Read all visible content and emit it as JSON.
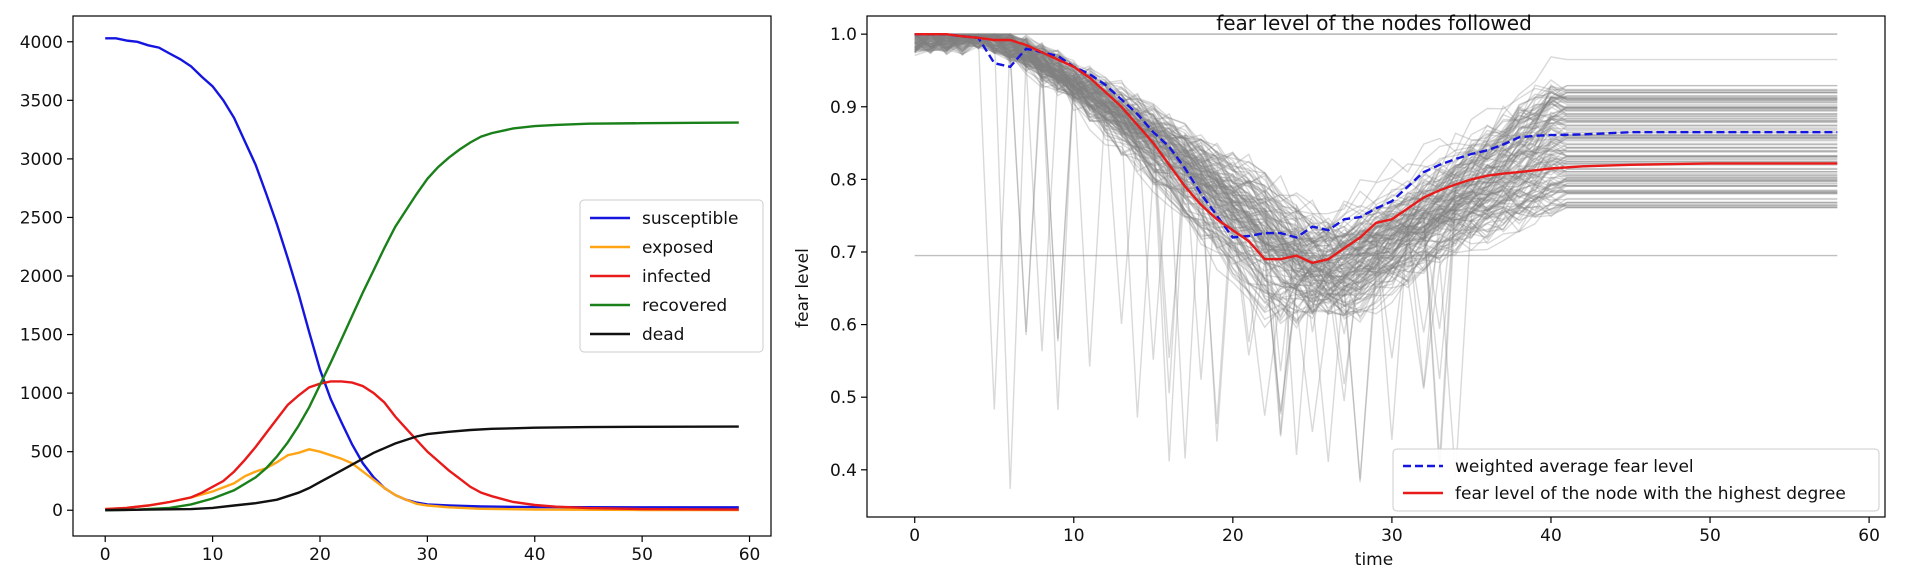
{
  "chart_data": [
    {
      "type": "line",
      "title": "",
      "xlabel": "",
      "ylabel": "",
      "xlim": [
        -3,
        62
      ],
      "ylim": [
        -220,
        4220
      ],
      "xticks": [
        0,
        10,
        20,
        30,
        40,
        50,
        60
      ],
      "yticks": [
        0,
        500,
        1000,
        1500,
        2000,
        2500,
        3000,
        3500,
        4000
      ],
      "legend_position": "center-right",
      "series": [
        {
          "name": "susceptible",
          "color": "#1515e0",
          "points": [
            [
              0,
              4030
            ],
            [
              1,
              4030
            ],
            [
              2,
              4010
            ],
            [
              3,
              4000
            ],
            [
              4,
              3970
            ],
            [
              5,
              3950
            ],
            [
              6,
              3900
            ],
            [
              7,
              3850
            ],
            [
              8,
              3790
            ],
            [
              9,
              3700
            ],
            [
              10,
              3620
            ],
            [
              11,
              3500
            ],
            [
              12,
              3350
            ],
            [
              13,
              3150
            ],
            [
              14,
              2950
            ],
            [
              15,
              2700
            ],
            [
              16,
              2440
            ],
            [
              17,
              2150
            ],
            [
              18,
              1850
            ],
            [
              19,
              1520
            ],
            [
              20,
              1200
            ],
            [
              21,
              950
            ],
            [
              22,
              750
            ],
            [
              23,
              560
            ],
            [
              24,
              400
            ],
            [
              25,
              280
            ],
            [
              26,
              190
            ],
            [
              27,
              130
            ],
            [
              28,
              90
            ],
            [
              29,
              65
            ],
            [
              30,
              50
            ],
            [
              32,
              40
            ],
            [
              35,
              32
            ],
            [
              40,
              27
            ],
            [
              50,
              25
            ],
            [
              59,
              25
            ]
          ]
        },
        {
          "name": "exposed",
          "color": "#ffa515",
          "points": [
            [
              0,
              10
            ],
            [
              2,
              20
            ],
            [
              4,
              40
            ],
            [
              6,
              70
            ],
            [
              8,
              110
            ],
            [
              10,
              160
            ],
            [
              12,
              230
            ],
            [
              13,
              290
            ],
            [
              14,
              330
            ],
            [
              15,
              360
            ],
            [
              16,
              410
            ],
            [
              17,
              470
            ],
            [
              18,
              490
            ],
            [
              19,
              520
            ],
            [
              20,
              500
            ],
            [
              21,
              470
            ],
            [
              22,
              440
            ],
            [
              23,
              400
            ],
            [
              24,
              330
            ],
            [
              25,
              260
            ],
            [
              26,
              190
            ],
            [
              27,
              130
            ],
            [
              28,
              90
            ],
            [
              29,
              55
            ],
            [
              30,
              40
            ],
            [
              32,
              25
            ],
            [
              35,
              12
            ],
            [
              40,
              5
            ],
            [
              50,
              2
            ],
            [
              59,
              1
            ]
          ]
        },
        {
          "name": "infected",
          "color": "#e81a1a",
          "points": [
            [
              0,
              10
            ],
            [
              2,
              20
            ],
            [
              4,
              40
            ],
            [
              6,
              70
            ],
            [
              8,
              110
            ],
            [
              9,
              150
            ],
            [
              10,
              200
            ],
            [
              11,
              250
            ],
            [
              12,
              330
            ],
            [
              13,
              430
            ],
            [
              14,
              540
            ],
            [
              15,
              660
            ],
            [
              16,
              780
            ],
            [
              17,
              900
            ],
            [
              18,
              980
            ],
            [
              19,
              1050
            ],
            [
              20,
              1080
            ],
            [
              21,
              1100
            ],
            [
              22,
              1100
            ],
            [
              23,
              1090
            ],
            [
              24,
              1060
            ],
            [
              25,
              1000
            ],
            [
              26,
              920
            ],
            [
              27,
              800
            ],
            [
              28,
              700
            ],
            [
              29,
              600
            ],
            [
              30,
              500
            ],
            [
              31,
              420
            ],
            [
              32,
              340
            ],
            [
              33,
              270
            ],
            [
              34,
              200
            ],
            [
              35,
              150
            ],
            [
              36,
              120
            ],
            [
              38,
              70
            ],
            [
              40,
              45
            ],
            [
              42,
              30
            ],
            [
              45,
              18
            ],
            [
              50,
              10
            ],
            [
              59,
              5
            ]
          ]
        },
        {
          "name": "recovered",
          "color": "#1a801a",
          "points": [
            [
              0,
              0
            ],
            [
              3,
              5
            ],
            [
              6,
              20
            ],
            [
              8,
              50
            ],
            [
              10,
              100
            ],
            [
              12,
              170
            ],
            [
              14,
              280
            ],
            [
              15,
              360
            ],
            [
              16,
              460
            ],
            [
              17,
              580
            ],
            [
              18,
              720
            ],
            [
              19,
              880
            ],
            [
              20,
              1070
            ],
            [
              21,
              1260
            ],
            [
              22,
              1460
            ],
            [
              23,
              1660
            ],
            [
              24,
              1860
            ],
            [
              25,
              2050
            ],
            [
              26,
              2240
            ],
            [
              27,
              2420
            ],
            [
              28,
              2560
            ],
            [
              29,
              2700
            ],
            [
              30,
              2830
            ],
            [
              31,
              2930
            ],
            [
              32,
              3010
            ],
            [
              33,
              3080
            ],
            [
              34,
              3140
            ],
            [
              35,
              3190
            ],
            [
              36,
              3220
            ],
            [
              37,
              3240
            ],
            [
              38,
              3260
            ],
            [
              40,
              3280
            ],
            [
              42,
              3290
            ],
            [
              45,
              3300
            ],
            [
              50,
              3305
            ],
            [
              55,
              3308
            ],
            [
              59,
              3310
            ]
          ]
        },
        {
          "name": "dead",
          "color": "#111111",
          "points": [
            [
              0,
              0
            ],
            [
              4,
              5
            ],
            [
              8,
              10
            ],
            [
              10,
              20
            ],
            [
              12,
              40
            ],
            [
              14,
              60
            ],
            [
              16,
              90
            ],
            [
              17,
              120
            ],
            [
              18,
              150
            ],
            [
              19,
              190
            ],
            [
              20,
              240
            ],
            [
              21,
              290
            ],
            [
              22,
              340
            ],
            [
              23,
              390
            ],
            [
              24,
              440
            ],
            [
              25,
              490
            ],
            [
              26,
              530
            ],
            [
              27,
              570
            ],
            [
              28,
              600
            ],
            [
              29,
              630
            ],
            [
              30,
              650
            ],
            [
              31,
              660
            ],
            [
              32,
              670
            ],
            [
              34,
              685
            ],
            [
              36,
              695
            ],
            [
              38,
              700
            ],
            [
              40,
              705
            ],
            [
              45,
              710
            ],
            [
              50,
              712
            ],
            [
              59,
              714
            ]
          ]
        }
      ]
    },
    {
      "type": "line",
      "title": "fear level of the nodes followed",
      "xlabel": "time",
      "ylabel": "fear level",
      "xlim": [
        -3,
        61
      ],
      "ylim": [
        0.335,
        1.025
      ],
      "xticks": [
        0,
        10,
        20,
        30,
        40,
        50,
        60
      ],
      "yticks": [
        0.4,
        0.5,
        0.6,
        0.7,
        0.8,
        0.9,
        1.0
      ],
      "legend_position": "lower-right",
      "background_lines": {
        "color": "#808080",
        "opacity": 0.3,
        "count": 150,
        "note_shape": "gray individual node trajectories"
      },
      "series": [
        {
          "name": "weighted average fear level",
          "color": "#1515e0",
          "dashed": true,
          "points": [
            [
              0,
              1.0
            ],
            [
              1,
              1.0
            ],
            [
              2,
              1.0
            ],
            [
              3,
              0.997
            ],
            [
              4,
              0.995
            ],
            [
              5,
              0.96
            ],
            [
              6,
              0.955
            ],
            [
              7,
              0.98
            ],
            [
              8,
              0.975
            ],
            [
              9,
              0.97
            ],
            [
              10,
              0.955
            ],
            [
              11,
              0.945
            ],
            [
              12,
              0.93
            ],
            [
              13,
              0.91
            ],
            [
              14,
              0.89
            ],
            [
              15,
              0.865
            ],
            [
              16,
              0.845
            ],
            [
              17,
              0.815
            ],
            [
              18,
              0.78
            ],
            [
              19,
              0.75
            ],
            [
              20,
              0.72
            ],
            [
              21,
              0.722
            ],
            [
              22,
              0.726
            ],
            [
              23,
              0.726
            ],
            [
              24,
              0.72
            ],
            [
              25,
              0.735
            ],
            [
              26,
              0.73
            ],
            [
              27,
              0.745
            ],
            [
              28,
              0.748
            ],
            [
              29,
              0.76
            ],
            [
              30,
              0.77
            ],
            [
              31,
              0.79
            ],
            [
              32,
              0.81
            ],
            [
              33,
              0.82
            ],
            [
              34,
              0.828
            ],
            [
              35,
              0.835
            ],
            [
              36,
              0.84
            ],
            [
              37,
              0.848
            ],
            [
              38,
              0.858
            ],
            [
              39,
              0.86
            ],
            [
              40,
              0.861
            ],
            [
              42,
              0.862
            ],
            [
              45,
              0.865
            ],
            [
              50,
              0.865
            ],
            [
              58,
              0.865
            ]
          ]
        },
        {
          "name": "fear level of the node with the highest degree",
          "color": "#e81a1a",
          "dashed": false,
          "points": [
            [
              0,
              1.0
            ],
            [
              1,
              1.0
            ],
            [
              2,
              1.0
            ],
            [
              3,
              0.997
            ],
            [
              4,
              0.995
            ],
            [
              5,
              0.992
            ],
            [
              6,
              0.992
            ],
            [
              7,
              0.985
            ],
            [
              8,
              0.975
            ],
            [
              9,
              0.965
            ],
            [
              10,
              0.955
            ],
            [
              11,
              0.94
            ],
            [
              12,
              0.92
            ],
            [
              13,
              0.9
            ],
            [
              14,
              0.875
            ],
            [
              15,
              0.85
            ],
            [
              16,
              0.82
            ],
            [
              17,
              0.79
            ],
            [
              18,
              0.765
            ],
            [
              19,
              0.745
            ],
            [
              20,
              0.73
            ],
            [
              21,
              0.715
            ],
            [
              22,
              0.69
            ],
            [
              23,
              0.69
            ],
            [
              24,
              0.695
            ],
            [
              25,
              0.685
            ],
            [
              26,
              0.69
            ],
            [
              27,
              0.705
            ],
            [
              28,
              0.72
            ],
            [
              29,
              0.74
            ],
            [
              30,
              0.745
            ],
            [
              31,
              0.76
            ],
            [
              32,
              0.775
            ],
            [
              33,
              0.785
            ],
            [
              34,
              0.793
            ],
            [
              35,
              0.8
            ],
            [
              36,
              0.805
            ],
            [
              37,
              0.808
            ],
            [
              38,
              0.81
            ],
            [
              40,
              0.815
            ],
            [
              42,
              0.818
            ],
            [
              45,
              0.82
            ],
            [
              50,
              0.822
            ],
            [
              58,
              0.822
            ]
          ]
        }
      ]
    }
  ]
}
